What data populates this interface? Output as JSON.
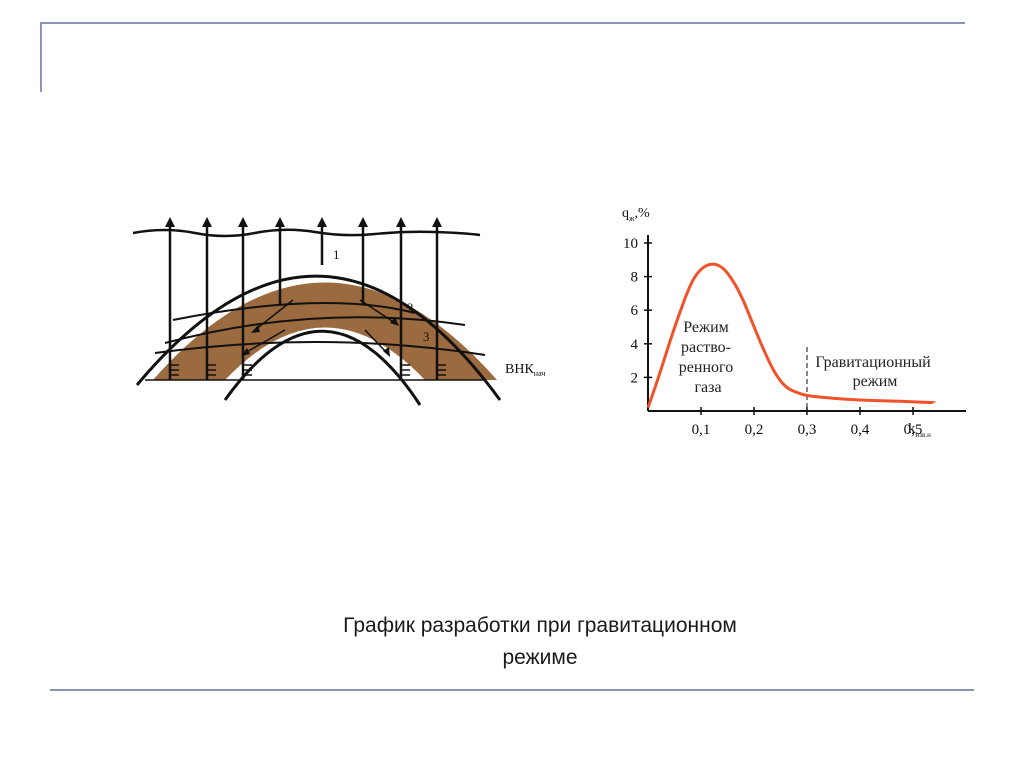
{
  "slide": {
    "caption_line1": "График разработки при гравитационном",
    "caption_line2": "режиме"
  },
  "diagram": {
    "label_1": "1",
    "label_2": "2",
    "label_3": "3",
    "wnk_label": "ВНК",
    "wnk_sub": "нач",
    "oil_color": "#9b6a3f",
    "line_color": "#111111"
  },
  "chart_data": {
    "type": "line",
    "ylabel": "q",
    "ylabel_sub": "ж",
    "ylabel_unit": ",%",
    "xlabel": "k",
    "xlabel_sub": "изв.н",
    "xlim": [
      0.0,
      0.6
    ],
    "ylim": [
      0,
      10
    ],
    "x_ticks": [
      "0,1",
      "0,2",
      "0,3",
      "0,4",
      "0,5"
    ],
    "y_ticks": [
      "2",
      "4",
      "6",
      "8",
      "10"
    ],
    "series": [
      {
        "color": "#f0522a",
        "x": [
          0.0,
          0.02,
          0.05,
          0.08,
          0.1,
          0.12,
          0.14,
          0.16,
          0.18,
          0.2,
          0.22,
          0.24,
          0.26,
          0.28,
          0.3,
          0.35,
          0.4,
          0.45,
          0.5,
          0.54
        ],
        "y": [
          0.2,
          2.0,
          5.0,
          7.6,
          8.5,
          8.8,
          8.6,
          7.8,
          6.6,
          5.0,
          3.5,
          2.2,
          1.4,
          1.1,
          0.9,
          0.75,
          0.65,
          0.6,
          0.55,
          0.5
        ]
      }
    ],
    "annotations": [
      {
        "lines": [
          "Режим",
          "раство-",
          "ренного",
          "газа"
        ]
      },
      {
        "lines": [
          "Гравитационный",
          "режим"
        ]
      }
    ],
    "region_divider_x": 0.3,
    "grid": false
  }
}
